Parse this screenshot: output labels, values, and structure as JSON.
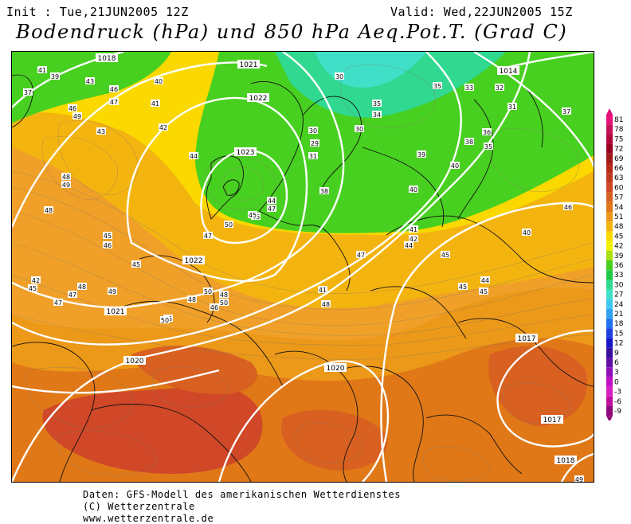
{
  "header": {
    "init": "Init : Tue,21JUN2005 12Z",
    "valid": "Valid: Wed,22JUN2005 15Z",
    "title": "Bodendruck (hPa) und 850 hPa Aeq.Pot.T. (Grad C)"
  },
  "legend": {
    "values": [
      "81",
      "78",
      "75",
      "72",
      "69",
      "66",
      "63",
      "60",
      "57",
      "54",
      "51",
      "48",
      "45",
      "42",
      "39",
      "36",
      "33",
      "30",
      "27",
      "24",
      "21",
      "18",
      "15",
      "12",
      "9",
      "6",
      "3",
      "0",
      "-3",
      "-6",
      "-9"
    ],
    "colors": [
      "#e8107a",
      "#c8105a",
      "#b0083a",
      "#980020",
      "#a01818",
      "#b82818",
      "#c03820",
      "#d04828",
      "#d86020",
      "#e07818",
      "#ec9818",
      "#f4b410",
      "#fad800",
      "#f0f000",
      "#a8e010",
      "#48d020",
      "#20c848",
      "#30d890",
      "#40e0c8",
      "#40c8f0",
      "#30a0f0",
      "#2070f0",
      "#2040e0",
      "#1818c8",
      "#3810a0",
      "#6010a8",
      "#9010b8",
      "#c010c8",
      "#d820c0",
      "#c010a0",
      "#900878"
    ]
  },
  "map": {
    "pressure_labels": [
      "1018",
      "1021",
      "1022",
      "1023",
      "1022",
      "1021",
      "1020",
      "1020",
      "1017",
      "1017",
      "1018",
      "1014"
    ],
    "theta_labels": [
      "41",
      "39",
      "37",
      "43",
      "46",
      "47",
      "46",
      "49",
      "40",
      "41",
      "43",
      "42",
      "44",
      "48",
      "49",
      "48",
      "45",
      "46",
      "45",
      "48",
      "49",
      "48",
      "50",
      "42",
      "47",
      "45",
      "48",
      "50",
      "44",
      "47",
      "46",
      "50",
      "45",
      "47",
      "30",
      "35",
      "29",
      "30",
      "31",
      "38",
      "30",
      "34",
      "35",
      "33",
      "32",
      "31",
      "37",
      "38",
      "36",
      "35",
      "40",
      "39",
      "40",
      "41",
      "42",
      "44",
      "40",
      "45",
      "47",
      "45",
      "44",
      "45",
      "46",
      "41",
      "48",
      "50",
      "47",
      "45",
      "46",
      "49"
    ]
  },
  "footer": {
    "line1": "Daten: GFS-Modell des amerikanischen Wetterdienstes",
    "line2": "(C) Wetterzentrale",
    "line3": "www.wetterzentrale.de"
  }
}
